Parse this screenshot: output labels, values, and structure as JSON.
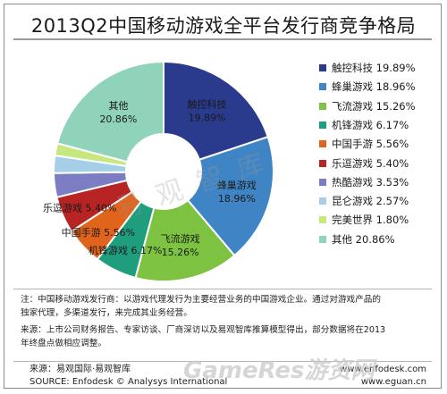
{
  "title": "2013Q2中国移动游戏全平台发行商竞争格局",
  "chart_data": {
    "type": "pie",
    "style": "donut",
    "title": "2013Q2中国移动游戏全平台发行商竞争格局",
    "unit": "%",
    "categories": [
      "触控科技",
      "蜂巢游戏",
      "飞流游戏",
      "机锋游戏",
      "中国手游",
      "乐逗游戏",
      "热酷游戏",
      "昆仑游戏",
      "完美世界",
      "其他"
    ],
    "values": [
      19.89,
      18.96,
      15.26,
      6.17,
      5.56,
      5.4,
      3.53,
      2.57,
      1.8,
      20.86
    ],
    "colors": [
      "#2a3a8c",
      "#3f85c5",
      "#7dc341",
      "#1f9e7e",
      "#e0641c",
      "#b82424",
      "#7c7cc2",
      "#a5cfe6",
      "#c6e87e",
      "#8fd3bb"
    ],
    "slice_labels": [
      "触控科技 19.89%",
      "蜂巢游戏 18.96%",
      "飞流游戏 15.26%",
      "机锋游戏 6.17%",
      "中国手游 5.56%",
      "乐逗游戏 5.40%",
      "",
      "",
      "",
      "其他 20.86%"
    ],
    "legend_position": "right"
  },
  "legend": [
    {
      "label": "触控科技 19.89%",
      "color": "#2a3a8c"
    },
    {
      "label": "蜂巢游戏 18.96%",
      "color": "#3f85c5"
    },
    {
      "label": "飞流游戏 15.26%",
      "color": "#7dc341"
    },
    {
      "label": "机锋游戏 6.17%",
      "color": "#1f9e7e"
    },
    {
      "label": "中国手游 5.56%",
      "color": "#e0641c"
    },
    {
      "label": "乐逗游戏 5.40%",
      "color": "#b82424"
    },
    {
      "label": "热酷游戏 3.53%",
      "color": "#7c7cc2"
    },
    {
      "label": "昆仑游戏 2.57%",
      "color": "#a5cfe6"
    },
    {
      "label": "完美世界 1.80%",
      "color": "#c6e87e"
    },
    {
      "label": "其他 20.86%",
      "color": "#8fd3bb"
    }
  ],
  "notes": {
    "line1": "注：中国移动游戏发行商：以游戏代理发行为主要经营业务的中国游戏企业。通过对游戏产品的",
    "line2": "独家代理，多渠道发行，来完成其业务经营。",
    "line3": "来源：上市公司财务报告、专家访谈、厂商深访以及易观智库推算模型得出，部分数据将在2013",
    "line4": "年终盘点做相应调整。"
  },
  "footer": {
    "source_cn": "来源：易观国际·易观智库",
    "source_en": "SOURCE: Enfodesk © Analysys International",
    "url1": "www.enfodesk.com",
    "url2": "www.eguan.cn"
  },
  "watermarks": {
    "center": "易 观 智 库",
    "bottom": "GameRes游资网"
  }
}
